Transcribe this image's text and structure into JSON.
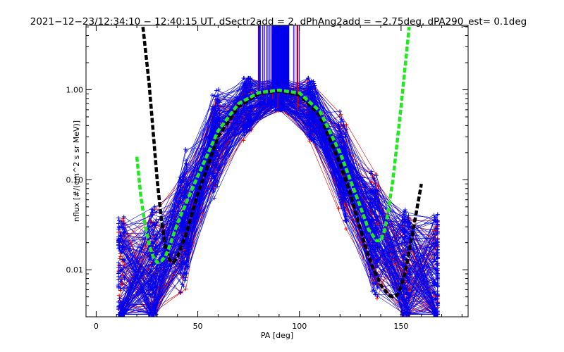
{
  "chart_data": {
    "type": "line",
    "title": "2021−12−23/12:34:10 − 12:40:15 UT, dSectr2add = 2, dPhAng2add = −2.75deg, dPA290_est=   0.1deg",
    "xlabel": "PA [deg]",
    "ylabel": "nflux [#/(cm^2 s sr MeV)]",
    "xlim": [
      -5,
      183
    ],
    "ylim": [
      0.003,
      5.2
    ],
    "yscale": "log",
    "x_ticks": [
      0,
      50,
      100,
      150
    ],
    "x_tick_labels": [
      "0",
      "50",
      "100",
      "150"
    ],
    "y_ticks": [
      0.01,
      0.1,
      1.0
    ],
    "y_tick_labels": [
      "0.01",
      "0.10",
      "1.00"
    ],
    "grid": false,
    "colors": {
      "red": "#e00000",
      "blue": "#0000ee",
      "black": "#000000",
      "green": "#22e822"
    },
    "series": [
      {
        "color": "red",
        "style": "thin lines with + markers",
        "count": 60,
        "x": [
          12,
          16,
          20,
          25,
          30,
          35,
          40,
          50,
          60,
          70,
          80,
          90,
          100,
          110,
          120,
          130,
          140,
          150,
          160,
          165
        ],
        "y": [
          0.006,
          0.006,
          0.007,
          0.008,
          0.01,
          0.012,
          0.018,
          0.085,
          0.3,
          0.6,
          0.85,
          0.88,
          0.8,
          0.46,
          0.16,
          0.05,
          0.018,
          0.009,
          0.007,
          0.006
        ]
      },
      {
        "color": "blue",
        "style": "thin lines with + markers",
        "count": 140,
        "x": [
          12,
          16,
          20,
          25,
          30,
          35,
          40,
          50,
          60,
          70,
          80,
          90,
          100,
          110,
          120,
          130,
          140,
          150,
          160,
          165
        ],
        "y": [
          0.006,
          0.006,
          0.007,
          0.008,
          0.01,
          0.012,
          0.02,
          0.1,
          0.32,
          0.62,
          0.85,
          0.9,
          0.82,
          0.5,
          0.18,
          0.052,
          0.019,
          0.0095,
          0.0075,
          0.0065
        ]
      },
      {
        "color": "black",
        "style": "thick dashed",
        "x": [
          23,
          26,
          28,
          30,
          32,
          34,
          36,
          38,
          40,
          44,
          50,
          60,
          70,
          80,
          90,
          100,
          110,
          120,
          125,
          130,
          135,
          140,
          144,
          146,
          148,
          150,
          152,
          154,
          156,
          158,
          160
        ],
        "y": [
          5.0,
          1.2,
          0.35,
          0.1,
          0.038,
          0.018,
          0.013,
          0.012,
          0.014,
          0.024,
          0.07,
          0.3,
          0.65,
          0.9,
          0.97,
          0.88,
          0.52,
          0.15,
          0.07,
          0.028,
          0.012,
          0.0068,
          0.0052,
          0.005,
          0.0052,
          0.0065,
          0.0095,
          0.016,
          0.028,
          0.05,
          0.09
        ]
      },
      {
        "color": "green",
        "style": "thick dashed",
        "x": [
          20,
          22,
          24,
          26,
          28,
          30,
          32,
          34,
          36,
          40,
          50,
          60,
          70,
          80,
          90,
          100,
          110,
          120,
          125,
          130,
          134,
          138,
          140,
          142,
          144,
          146,
          148,
          150,
          152,
          154
        ],
        "y": [
          0.18,
          0.065,
          0.032,
          0.019,
          0.014,
          0.012,
          0.0125,
          0.014,
          0.018,
          0.033,
          0.11,
          0.35,
          0.7,
          0.93,
          0.99,
          0.92,
          0.58,
          0.2,
          0.1,
          0.05,
          0.028,
          0.021,
          0.021,
          0.028,
          0.05,
          0.1,
          0.25,
          0.65,
          1.8,
          5.0
        ]
      }
    ]
  }
}
